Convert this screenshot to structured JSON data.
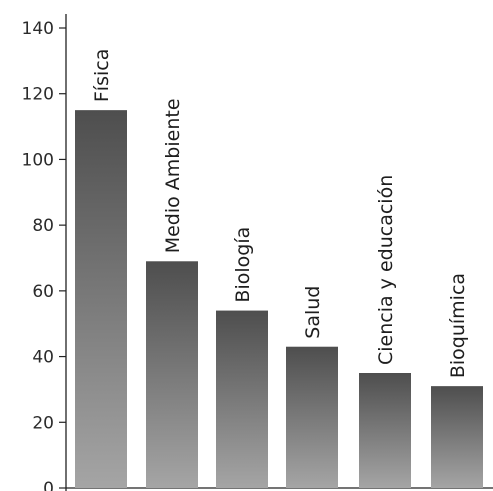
{
  "chart_data": {
    "type": "bar",
    "categories": [
      "Física",
      "Medio Ambiente",
      "Biología",
      "Salud",
      "Ciencia y educación",
      "Bioquímica"
    ],
    "values": [
      115,
      69,
      54,
      43,
      35,
      31
    ],
    "title": "",
    "xlabel": "",
    "ylabel": "",
    "ylim": [
      0,
      140
    ],
    "yticks": [
      0,
      20,
      40,
      60,
      80,
      100,
      120,
      140
    ],
    "grid": false,
    "legend": "none",
    "bar_gradient": [
      "#4e4e4e",
      "#a5a5a5"
    ],
    "axis_color": "#222222"
  }
}
